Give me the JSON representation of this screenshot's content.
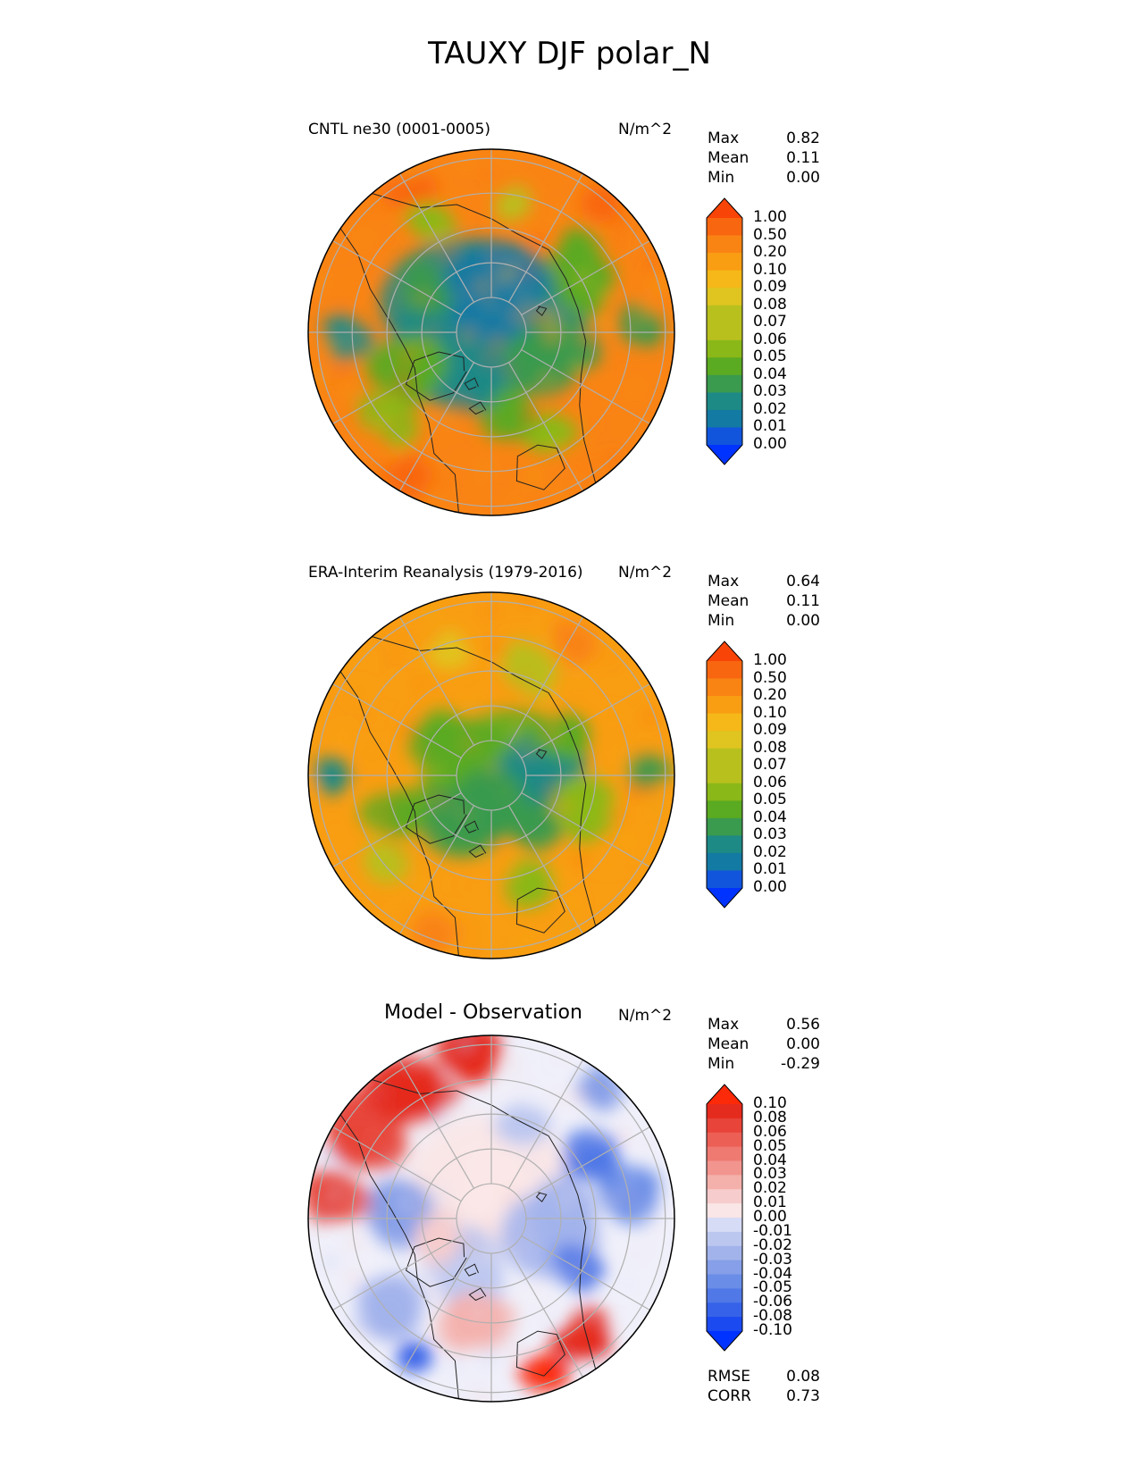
{
  "title": "TAUXY DJF polar_N",
  "colors": {
    "abs_ramp": [
      "#0033ff",
      "#1155dd",
      "#137aa3",
      "#1e8a86",
      "#3a9a4e",
      "#5aaa22",
      "#8ab818",
      "#b8c01e",
      "#e0c420",
      "#f5b818",
      "#f99d12",
      "#f98414",
      "#f96610",
      "#f94408"
    ],
    "diff_ramp": [
      "#0033ff",
      "#1a4af0",
      "#3562e8",
      "#5078e6",
      "#6a8de8",
      "#869fe8",
      "#a2b3ec",
      "#bcc7f0",
      "#d7dcf6",
      "#f0f0fa",
      "#fae6e6",
      "#f6cccc",
      "#f4b0ab",
      "#f2958e",
      "#ef7a72",
      "#ec5f55",
      "#e84439",
      "#e52a1e",
      "#fc2a08"
    ],
    "land_line": "#222222",
    "grid": "#b0b0b0"
  },
  "chart_data": [
    {
      "type": "heatmap",
      "projection": "north-polar-stereographic",
      "title": "CNTL ne30 (0001-0005)",
      "units": "N/m^2",
      "stats": [
        {
          "label": "Max",
          "value": "0.82"
        },
        {
          "label": "Mean",
          "value": "0.11"
        },
        {
          "label": "Min",
          "value": "0.00"
        }
      ],
      "colorbar": {
        "ticks": [
          "1.00",
          "0.50",
          "0.20",
          "0.10",
          "0.09",
          "0.08",
          "0.07",
          "0.06",
          "0.05",
          "0.04",
          "0.03",
          "0.02",
          "0.01",
          "0.00"
        ],
        "extend": "both"
      }
    },
    {
      "type": "heatmap",
      "projection": "north-polar-stereographic",
      "title": "ERA-Interim Reanalysis (1979-2016)",
      "units": "N/m^2",
      "stats": [
        {
          "label": "Max",
          "value": "0.64"
        },
        {
          "label": "Mean",
          "value": "0.11"
        },
        {
          "label": "Min",
          "value": "0.00"
        }
      ],
      "colorbar": {
        "ticks": [
          "1.00",
          "0.50",
          "0.20",
          "0.10",
          "0.09",
          "0.08",
          "0.07",
          "0.06",
          "0.05",
          "0.04",
          "0.03",
          "0.02",
          "0.01",
          "0.00"
        ],
        "extend": "both"
      }
    },
    {
      "type": "heatmap",
      "projection": "north-polar-stereographic",
      "title": "Model - Observation",
      "units": "N/m^2",
      "stats": [
        {
          "label": "Max",
          "value": "0.56"
        },
        {
          "label": "Mean",
          "value": "0.00"
        },
        {
          "label": "Min",
          "value": "-0.29"
        }
      ],
      "metrics": [
        {
          "label": "RMSE",
          "value": "0.08"
        },
        {
          "label": "CORR",
          "value": "0.73"
        }
      ],
      "colorbar": {
        "ticks": [
          "0.10",
          "0.08",
          "0.06",
          "0.05",
          "0.04",
          "0.03",
          "0.02",
          "0.01",
          "0.00",
          "-0.01",
          "-0.02",
          "-0.03",
          "-0.04",
          "-0.05",
          "-0.06",
          "-0.08",
          "-0.10"
        ],
        "extend": "both"
      }
    }
  ]
}
